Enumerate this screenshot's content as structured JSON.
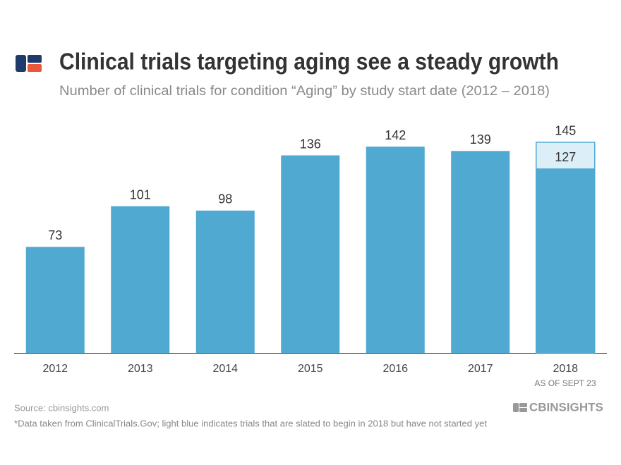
{
  "chart_data": {
    "type": "bar",
    "title": "Clinical trials targeting aging see a steady growth",
    "subtitle": "Number of clinical trials for condition “Aging” by study start date (2012 – 2018)",
    "categories": [
      "2012",
      "2013",
      "2014",
      "2015",
      "2016",
      "2017",
      "2018"
    ],
    "category_note": "AS OF SEPT 23",
    "series": [
      {
        "color": "#4fa9d1",
        "values": [
          73,
          101,
          98,
          136,
          142,
          139,
          127
        ]
      },
      {
        "color": "#dceef8",
        "values": [
          null,
          null,
          null,
          null,
          null,
          null,
          145
        ]
      }
    ],
    "ylim": [
      0,
      160
    ],
    "source": "Source: cbinsights.com",
    "footnote": "*Data taken from ClinicalTrials.Gov; light blue indicates trials that are slated to begin in 2018 but have not started yet",
    "brand": "CBINSIGHTS"
  }
}
